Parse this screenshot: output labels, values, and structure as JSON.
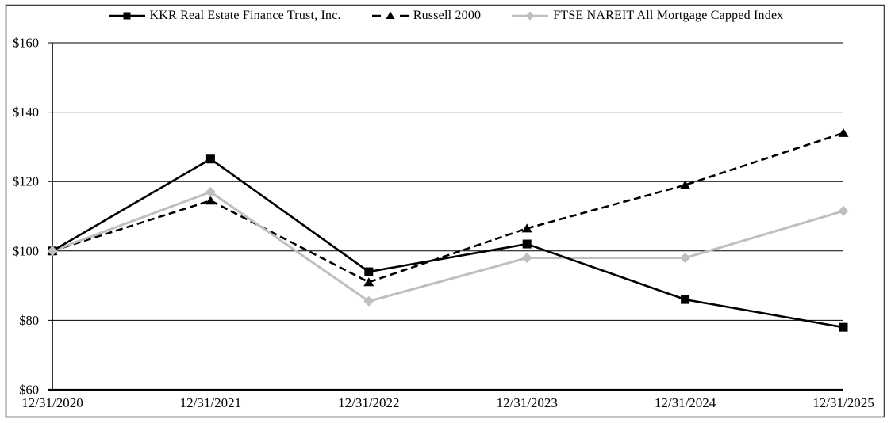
{
  "chart_data": {
    "type": "line",
    "title": "",
    "xlabel": "",
    "ylabel": "",
    "x_categories": [
      "12/31/2020",
      "12/31/2021",
      "12/31/2022",
      "12/31/2023",
      "12/31/2024",
      "12/31/2025"
    ],
    "ylim": [
      60,
      160
    ],
    "y_ticks": [
      60,
      80,
      100,
      120,
      140,
      160
    ],
    "y_tick_labels": [
      "$60",
      "$80",
      "$100",
      "$120",
      "$140",
      "$160"
    ],
    "grid": "horizontal",
    "legend_position": "top",
    "series": [
      {
        "name": "KKR Real Estate Finance Trust, Inc.",
        "marker": "square",
        "line_style": "solid",
        "color": "#000000",
        "values": [
          100,
          126.5,
          94,
          102,
          86,
          78
        ]
      },
      {
        "name": "Russell 2000",
        "marker": "triangle",
        "line_style": "dashed",
        "color": "#000000",
        "values": [
          100,
          114.5,
          91,
          106.5,
          119,
          134
        ]
      },
      {
        "name": "FTSE NAREIT All Mortgage Capped Index",
        "marker": "diamond",
        "line_style": "solid",
        "color": "#bfbfbf",
        "values": [
          100,
          117,
          85.5,
          98,
          98,
          111.5
        ]
      }
    ],
    "colors": {
      "axis": "#000000",
      "frame_border": "#404040",
      "background": "#ffffff"
    }
  }
}
